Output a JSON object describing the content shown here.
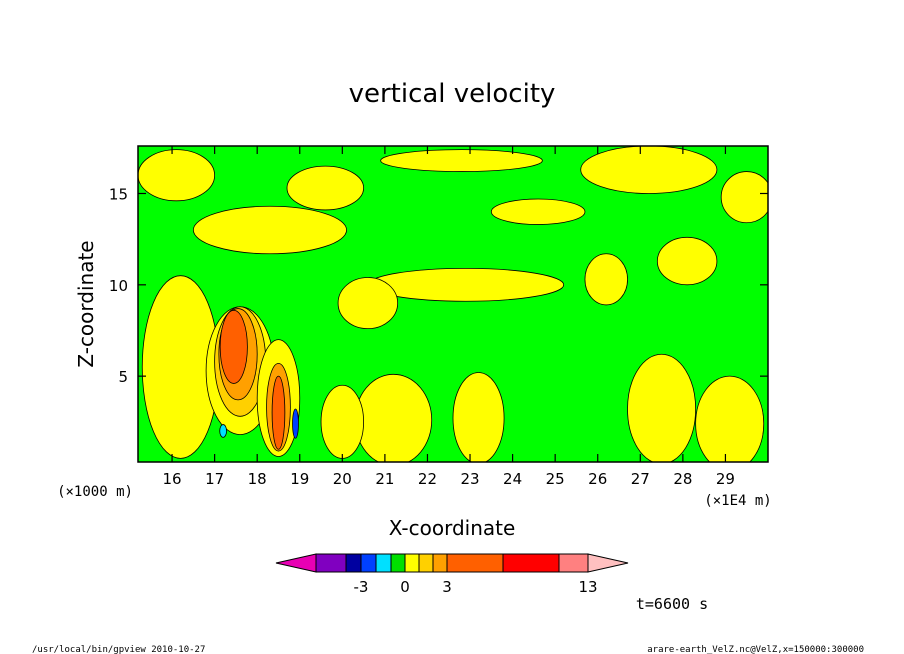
{
  "chart_data": {
    "type": "heatmap",
    "title": "vertical velocity",
    "xlabel": "X-coordinate",
    "ylabel": "Z-coordinate",
    "x_unit_label": "(×1E4 m)",
    "y_unit_label": "(×1000 m)",
    "xlim": [
      15.2,
      30.0
    ],
    "ylim": [
      0.3,
      17.6
    ],
    "x_ticks": [
      16,
      17,
      18,
      19,
      20,
      21,
      22,
      23,
      24,
      25,
      26,
      27,
      28,
      29
    ],
    "y_ticks": [
      5,
      10,
      15
    ],
    "colorbar": {
      "ticks": [
        "-3",
        "0",
        "3",
        "13"
      ],
      "colors": [
        "#e800b4",
        "#8000c0",
        "#0000a0",
        "#0040ff",
        "#00e0ff",
        "#00e000",
        "#ffff00",
        "#ffd000",
        "#ffa000",
        "#ff6000",
        "#ff0000",
        "#ff8080",
        "#ffc0c0"
      ]
    },
    "background_color": "#00ff00",
    "regions": [
      {
        "level": "yellow",
        "color": "#ffff00",
        "x": 16.1,
        "y": 16.0,
        "rx": 0.9,
        "ry": 1.4
      },
      {
        "level": "yellow",
        "color": "#ffff00",
        "x": 18.3,
        "y": 13.0,
        "rx": 1.8,
        "ry": 1.3
      },
      {
        "level": "yellow",
        "color": "#ffff00",
        "x": 19.6,
        "y": 15.3,
        "rx": 0.9,
        "ry": 1.2
      },
      {
        "level": "yellow",
        "color": "#ffff00",
        "x": 22.8,
        "y": 16.8,
        "rx": 1.9,
        "ry": 0.6
      },
      {
        "level": "yellow",
        "color": "#ffff00",
        "x": 27.2,
        "y": 16.3,
        "rx": 1.6,
        "ry": 1.3
      },
      {
        "level": "yellow",
        "color": "#ffff00",
        "x": 29.5,
        "y": 14.8,
        "rx": 0.6,
        "ry": 1.4
      },
      {
        "level": "yellow",
        "color": "#ffff00",
        "x": 24.6,
        "y": 14.0,
        "rx": 1.1,
        "ry": 0.7
      },
      {
        "level": "yellow",
        "color": "#ffff00",
        "x": 28.1,
        "y": 11.3,
        "rx": 0.7,
        "ry": 1.3
      },
      {
        "level": "yellow",
        "color": "#ffff00",
        "x": 26.2,
        "y": 10.3,
        "rx": 0.5,
        "ry": 1.4
      },
      {
        "level": "yellow",
        "color": "#ffff00",
        "x": 22.9,
        "y": 10.0,
        "rx": 2.3,
        "ry": 0.9
      },
      {
        "level": "yellow",
        "color": "#ffff00",
        "x": 20.6,
        "y": 9.0,
        "rx": 0.7,
        "ry": 1.4
      },
      {
        "level": "yellow",
        "color": "#ffff00",
        "x": 16.2,
        "y": 5.5,
        "rx": 0.9,
        "ry": 5.0
      },
      {
        "level": "yellow",
        "color": "#ffff00",
        "x": 21.2,
        "y": 2.6,
        "rx": 0.9,
        "ry": 2.5
      },
      {
        "level": "yellow",
        "color": "#ffff00",
        "x": 23.2,
        "y": 2.7,
        "rx": 0.6,
        "ry": 2.5
      },
      {
        "level": "yellow",
        "color": "#ffff00",
        "x": 27.5,
        "y": 3.2,
        "rx": 0.8,
        "ry": 3.0
      },
      {
        "level": "yellow",
        "color": "#ffff00",
        "x": 29.1,
        "y": 2.4,
        "rx": 0.8,
        "ry": 2.6
      },
      {
        "level": "yellow",
        "color": "#ffff00",
        "x": 20.0,
        "y": 2.5,
        "rx": 0.5,
        "ry": 2.0
      },
      {
        "level": "yellow",
        "color": "#ffff00",
        "x": 17.6,
        "y": 5.3,
        "rx": 0.8,
        "ry": 3.5
      },
      {
        "level": "light-orange",
        "color": "#ffd000",
        "x": 17.6,
        "y": 5.8,
        "rx": 0.6,
        "ry": 3.0
      },
      {
        "level": "orange",
        "color": "#ffa000",
        "x": 17.55,
        "y": 6.2,
        "rx": 0.45,
        "ry": 2.5
      },
      {
        "level": "dark-orange",
        "color": "#ff6000",
        "x": 17.45,
        "y": 6.6,
        "rx": 0.32,
        "ry": 2.0
      },
      {
        "level": "yellow",
        "color": "#ffff00",
        "x": 18.5,
        "y": 3.8,
        "rx": 0.5,
        "ry": 3.2
      },
      {
        "level": "orange",
        "color": "#ffa000",
        "x": 18.5,
        "y": 3.3,
        "rx": 0.28,
        "ry": 2.4
      },
      {
        "level": "dark-orange",
        "color": "#ff6000",
        "x": 18.5,
        "y": 3.0,
        "rx": 0.15,
        "ry": 2.0
      },
      {
        "level": "cyan",
        "color": "#00e0ff",
        "x": 17.2,
        "y": 2.0,
        "rx": 0.08,
        "ry": 0.35
      },
      {
        "level": "blue",
        "color": "#0040ff",
        "x": 18.9,
        "y": 2.4,
        "rx": 0.07,
        "ry": 0.8
      }
    ]
  },
  "annotations": {
    "time": "t=6600 s",
    "footer_left": "/usr/local/bin/gpview  2010-10-27",
    "footer_right": "arare-earth_VelZ.nc@VelZ,x=150000:300000"
  }
}
